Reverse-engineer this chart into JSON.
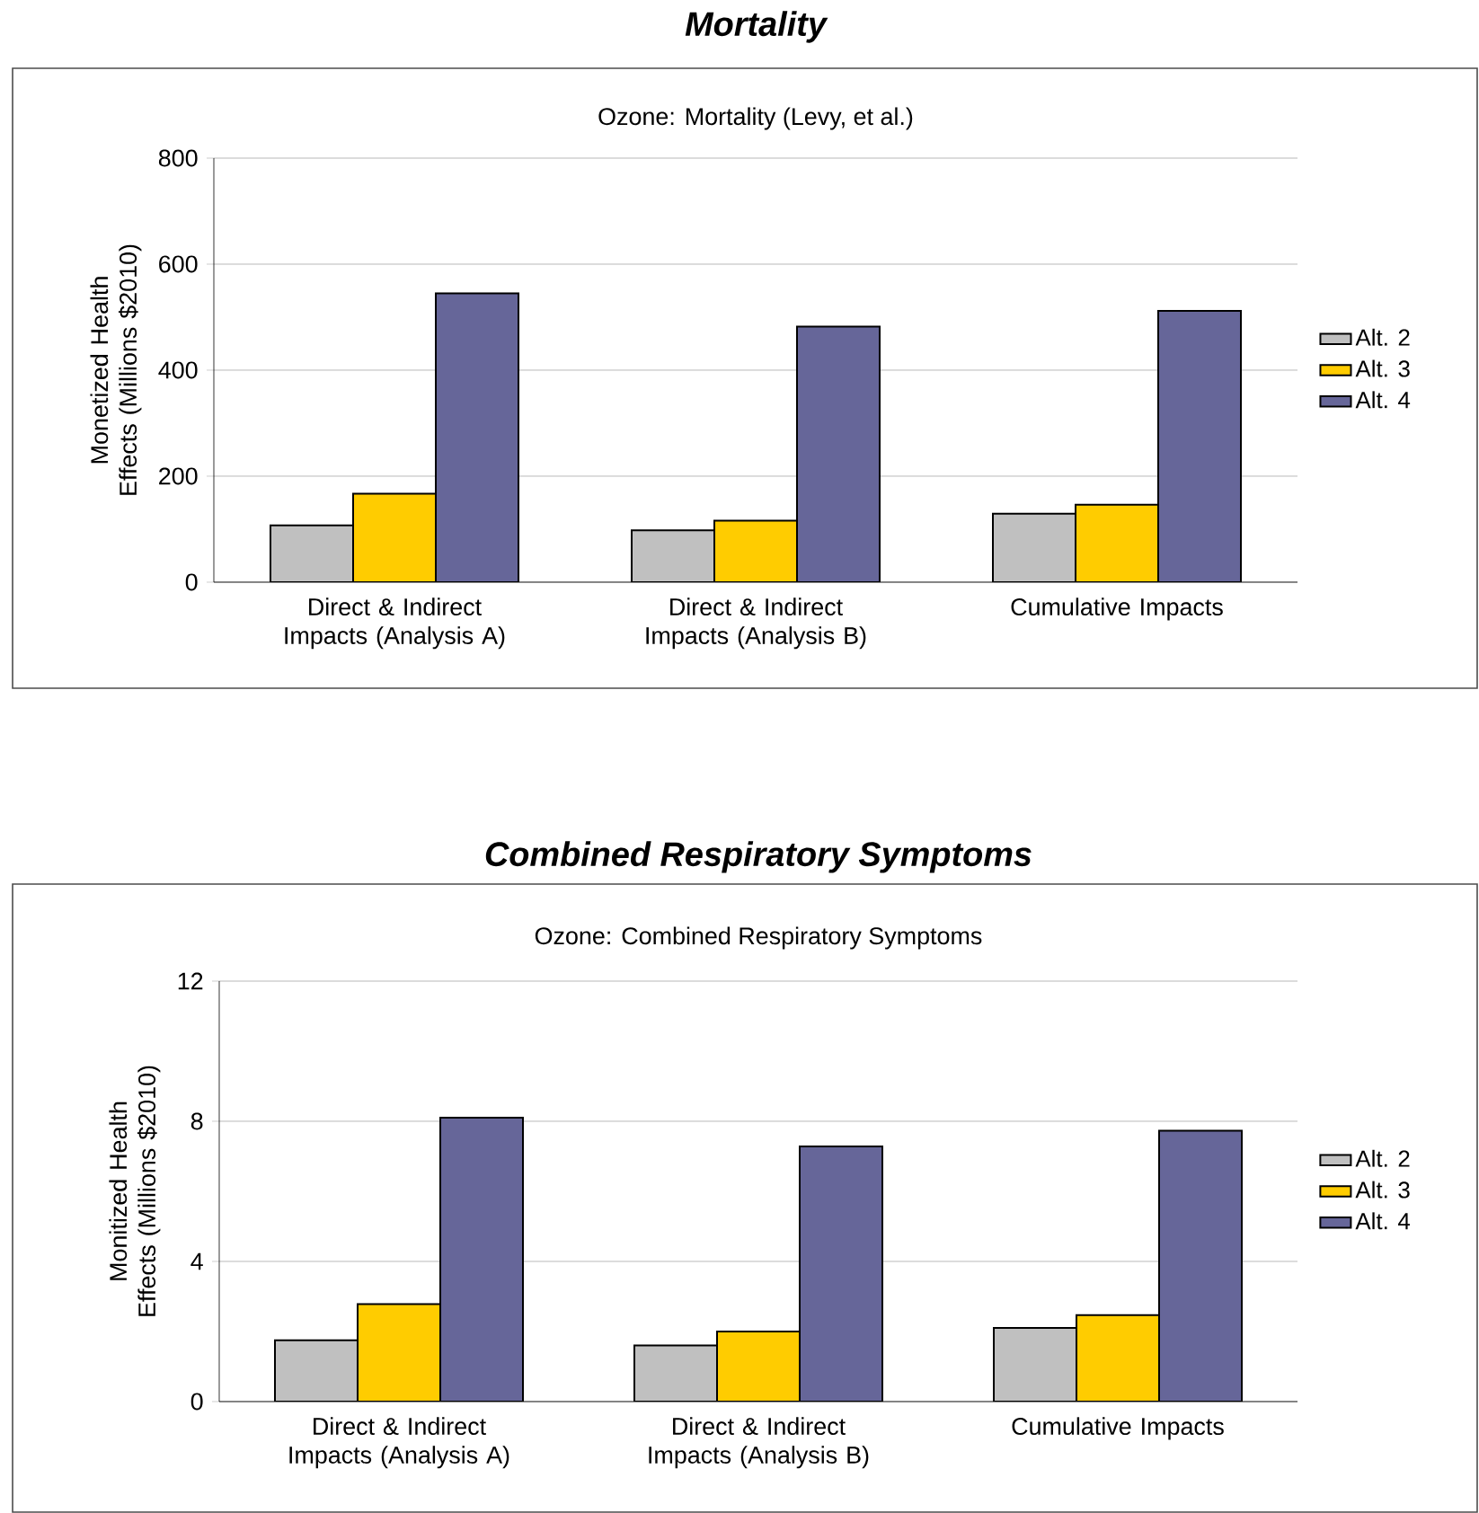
{
  "chart_data": [
    {
      "type": "bar",
      "title": "Mortality",
      "subtitle": "Ozone: Mortality (Levy, et al.)",
      "ylabel": "Monetized Health Effects (Millions $2010)",
      "categories": [
        "Direct & Indirect Impacts (Analysis A)",
        "Direct & Indirect Impacts (Analysis B)",
        "Cumulative Impacts"
      ],
      "series": [
        {
          "name": "Alt. 2",
          "color": "#c0c0c0",
          "values": [
            107,
            98,
            129
          ]
        },
        {
          "name": "Alt. 3",
          "color": "#ffcc00",
          "values": [
            167,
            116,
            146
          ]
        },
        {
          "name": "Alt. 4",
          "color": "#666699",
          "values": [
            545,
            482,
            512
          ]
        }
      ],
      "ylim": [
        0,
        800
      ],
      "yticks": [
        0,
        200,
        400,
        600,
        800
      ],
      "grid": "y",
      "legend": "right"
    },
    {
      "type": "bar",
      "title": "Combined Respiratory Symptoms",
      "subtitle": "Ozone: Combined Respiratory Symptoms",
      "ylabel": "Monitized Health Effects (Millions $2010)",
      "categories": [
        "Direct & Indirect Impacts (Analysis A)",
        "Direct & Indirect Impacts (Analysis B)",
        "Cumulative Impacts"
      ],
      "series": [
        {
          "name": "Alt. 2",
          "color": "#c0c0c0",
          "values": [
            1.75,
            1.6,
            2.1
          ]
        },
        {
          "name": "Alt. 3",
          "color": "#ffcc00",
          "values": [
            2.78,
            2.0,
            2.47
          ]
        },
        {
          "name": "Alt. 4",
          "color": "#666699",
          "values": [
            8.1,
            7.28,
            7.73
          ]
        }
      ],
      "ylim": [
        0,
        12
      ],
      "yticks": [
        0,
        4,
        8,
        12
      ],
      "grid": "y",
      "legend": "right"
    }
  ]
}
